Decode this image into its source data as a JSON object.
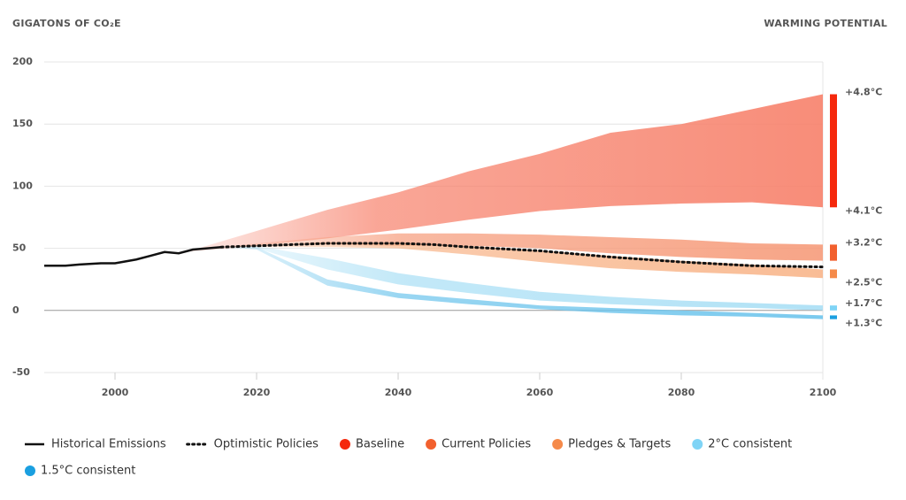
{
  "chart_data": {
    "type": "line",
    "y_axis_label": "GIGATONS OF CO₂E",
    "right_label": "WARMING POTENTIAL",
    "xlim": [
      1990,
      2100
    ],
    "xticks": [
      2000,
      2020,
      2040,
      2060,
      2080,
      2100
    ],
    "ylim": [
      -50,
      200
    ],
    "yticks": [
      -50,
      0,
      50,
      100,
      150,
      200
    ],
    "grid": true,
    "series": [
      {
        "name": "Historical Emissions",
        "kind": "line",
        "color": "#111111",
        "x": [
          1990,
          1993,
          1995,
          1998,
          2000,
          2003,
          2005,
          2007,
          2009,
          2011,
          2013,
          2015
        ],
        "values": [
          36,
          36,
          37,
          38,
          38,
          41,
          44,
          47,
          46,
          49,
          50,
          51
        ]
      },
      {
        "name": "Optimistic Policies",
        "kind": "dotted",
        "color": "#111111",
        "x": [
          2015,
          2020,
          2025,
          2030,
          2040,
          2045,
          2050,
          2060,
          2070,
          2080,
          2090,
          2100
        ],
        "values": [
          51,
          52,
          53,
          54,
          54,
          53,
          51,
          48,
          43,
          39,
          36,
          35
        ]
      },
      {
        "name": "Baseline",
        "kind": "band",
        "color": "#f5280c",
        "band_color": "#f7806a",
        "x": [
          2010,
          2020,
          2030,
          2040,
          2050,
          2060,
          2070,
          2080,
          2090,
          2100
        ],
        "low": [
          47,
          52,
          58,
          65,
          73,
          80,
          84,
          86,
          87,
          83
        ],
        "high": [
          47,
          64,
          81,
          95,
          112,
          126,
          143,
          150,
          162,
          174
        ],
        "warming": [
          "+4.1°C",
          "+4.8°C"
        ]
      },
      {
        "name": "Current Policies",
        "kind": "band",
        "color": "#f2602e",
        "band_color": "#f69b7a",
        "x": [
          2015,
          2020,
          2030,
          2040,
          2050,
          2060,
          2070,
          2080,
          2090,
          2100
        ],
        "low": [
          51,
          52,
          53,
          52,
          52,
          50,
          46,
          43,
          41,
          40
        ],
        "high": [
          51,
          54,
          59,
          62,
          62,
          61,
          59,
          57,
          54,
          53
        ],
        "warming": [
          "+3.2°C"
        ],
        "warming_at": "high"
      },
      {
        "name": "Pledges & Targets",
        "kind": "band",
        "color": "#f58a4a",
        "band_color": "#f8b58a",
        "x": [
          2015,
          2020,
          2030,
          2040,
          2050,
          2060,
          2070,
          2080,
          2090,
          2100
        ],
        "low": [
          51,
          51,
          51,
          50,
          45,
          39,
          34,
          31,
          29,
          26
        ],
        "high": [
          51,
          53,
          55,
          54,
          52,
          48,
          44,
          40,
          37,
          33
        ],
        "warming": [
          "+2.5°C"
        ],
        "warming_at": "low"
      },
      {
        "name": "2°C consistent",
        "kind": "band",
        "color": "#7fd4f6",
        "band_color": "#a9dff5",
        "x": [
          2015,
          2020,
          2030,
          2040,
          2050,
          2060,
          2070,
          2080,
          2090,
          2100
        ],
        "low": [
          51,
          50,
          33,
          21,
          14,
          8,
          5,
          3,
          2,
          0
        ],
        "high": [
          51,
          52,
          42,
          30,
          22,
          15,
          11,
          8,
          6,
          4
        ],
        "warming": [
          "+1.7°C"
        ],
        "warming_at": "high"
      },
      {
        "name": "1.5°C consistent",
        "kind": "band",
        "color": "#1a9fe0",
        "band_color": "#6cc4ec",
        "x": [
          2015,
          2020,
          2030,
          2040,
          2050,
          2060,
          2070,
          2080,
          2090,
          2100
        ],
        "low": [
          51,
          49,
          20,
          10,
          5,
          1,
          -2,
          -4,
          -5,
          -7
        ],
        "high": [
          51,
          51,
          25,
          14,
          9,
          4,
          2,
          0,
          -2,
          -4
        ],
        "warming": [
          "+1.3°C"
        ],
        "warming_at": "low"
      }
    ]
  }
}
